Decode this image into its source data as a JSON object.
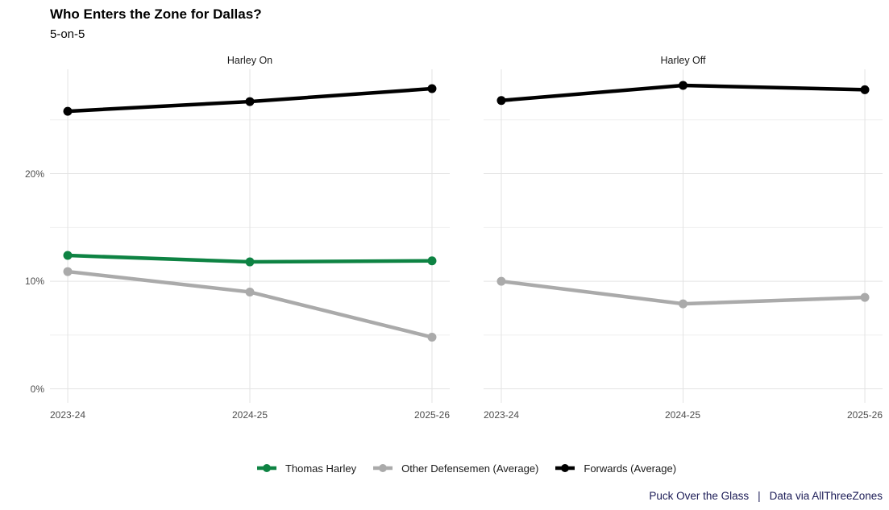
{
  "chart_data": {
    "type": "line",
    "title": "Who Enters the Zone for Dallas?",
    "subtitle": "5-on-5",
    "categories": [
      "2023-24",
      "2024-25",
      "2025-26"
    ],
    "y_axis": {
      "ticks": [
        {
          "label": "0%",
          "value": 0
        },
        {
          "label": "10%",
          "value": 10
        },
        {
          "label": "20%",
          "value": 20
        }
      ],
      "minor_ticks": [
        5,
        15,
        25
      ],
      "range_top": 29.7,
      "range_bottom": -1.3,
      "unit": "percent",
      "grid": "on"
    },
    "facets": [
      {
        "label": "Harley On",
        "series": [
          {
            "name": "Thomas Harley",
            "color": "#0E8343",
            "values": [
              12.4,
              11.8,
              11.9
            ]
          },
          {
            "name": "Other Defensemen (Average)",
            "color": "#AAAAAA",
            "values": [
              10.9,
              9.0,
              4.8
            ]
          },
          {
            "name": "Forwards (Average)",
            "color": "#000000",
            "values": [
              25.8,
              26.7,
              27.9
            ]
          }
        ]
      },
      {
        "label": "Harley Off",
        "series": [
          {
            "name": "Other Defensemen (Average)",
            "color": "#AAAAAA",
            "values": [
              10.0,
              7.9,
              8.5
            ]
          },
          {
            "name": "Forwards (Average)",
            "color": "#000000",
            "values": [
              26.8,
              28.2,
              27.8
            ]
          }
        ]
      }
    ],
    "legend_position": "bottom"
  },
  "legend": {
    "items": [
      {
        "label": "Thomas Harley",
        "color": "#0E8343"
      },
      {
        "label": "Other Defensemen (Average)",
        "color": "#AAAAAA"
      },
      {
        "label": "Forwards (Average)",
        "color": "#000000"
      }
    ]
  },
  "caption": {
    "text_left": "Puck Over the Glass",
    "separator": "|",
    "text_right": "Data via AllThreeZones",
    "color": "#1b1b56"
  },
  "style": {
    "grid_major_color": "#e3e3e3",
    "grid_minor_color": "#efefef",
    "axis_text_color": "#4d4d4d"
  }
}
